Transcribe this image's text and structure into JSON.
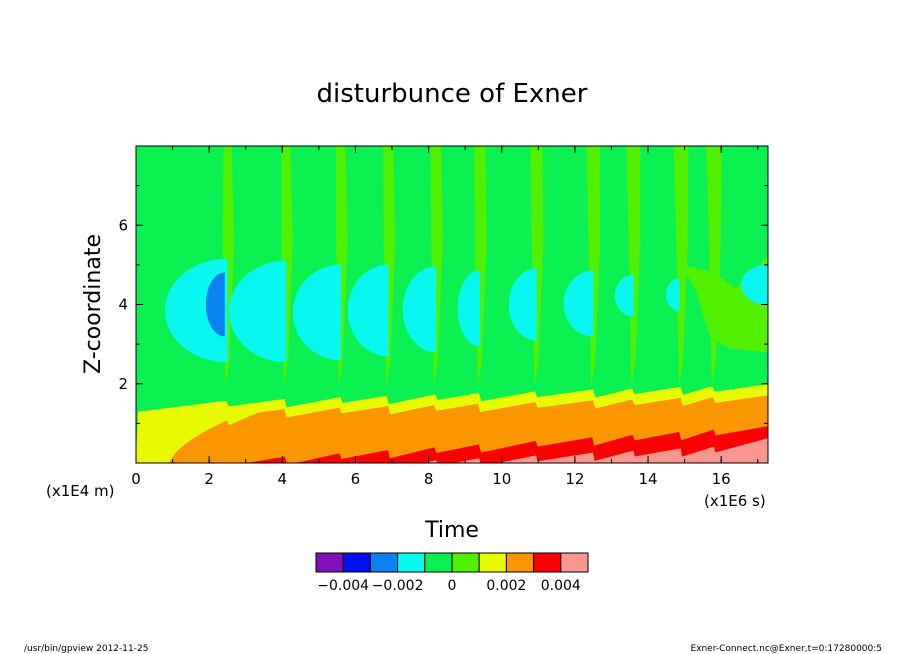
{
  "chart_data": {
    "type": "heatmap",
    "title": "disturbunce of Exner",
    "xlabel": "Time",
    "ylabel": "Z-coordinate",
    "x_multiplier": "(x1E6 s)",
    "y_multiplier": "(x1E4 m)",
    "xlim": [
      0,
      17.28
    ],
    "ylim": [
      0,
      8
    ],
    "x_ticks": [
      "0",
      "2",
      "4",
      "6",
      "8",
      "10",
      "12",
      "14",
      "16"
    ],
    "y_ticks": [
      "2",
      "4",
      "6"
    ],
    "colorbar": {
      "levels": [
        -0.005,
        -0.004,
        -0.003,
        -0.002,
        -0.001,
        0,
        0.001,
        0.002,
        0.003,
        0.004,
        0.005
      ],
      "colors": [
        "#8010b8",
        "#0010f0",
        "#0a82f0",
        "#08f8f0",
        "#0af050",
        "#50f000",
        "#e8fa00",
        "#fa9600",
        "#fa0000",
        "#fa9690"
      ],
      "tick_labels": [
        "−0.004",
        "−0.002",
        "0",
        "0.002",
        "0.004"
      ]
    },
    "cycle_boundaries_x": [
      0,
      2.5,
      4.1,
      5.6,
      6.9,
      8.2,
      9.4,
      10.95,
      12.5,
      13.6,
      14.9,
      15.8,
      17.28
    ],
    "positive_band_bottom_level": 0.001,
    "negative_lobe_center_z": 4.0
  },
  "footer": {
    "left": "/usr/bin/gpview   2012-11-25",
    "right": "Exner-Connect.nc@Exner,t=0:17280000:5"
  }
}
